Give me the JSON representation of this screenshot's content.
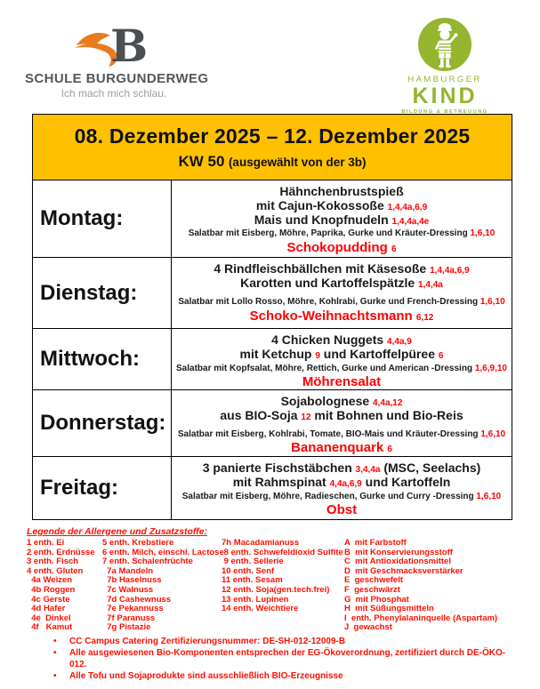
{
  "branding": {
    "school": {
      "letter": "B",
      "name": "SCHULE BURGUNDERWEG",
      "tagline": "Ich mach mich schlau."
    },
    "provider": {
      "line1": "HAMBURGER",
      "line2": "KIND",
      "line3": "BILDUNG & BETREUUNG"
    }
  },
  "title": {
    "date_range": "08. Dezember 2025 – 12. Dezember 2025",
    "week": "KW 50",
    "week_note": "(ausgewählt von der 3b)"
  },
  "colors": {
    "banner_yellow": "#FFC000",
    "allergen_red": "#FF0000",
    "provider_green": "#95B52F",
    "logo_orange": "#E87A20",
    "logo_gray": "#54575A"
  },
  "menu": {
    "days": [
      {
        "label": "Montag:",
        "lines": [
          {
            "type": "main",
            "segments": [
              {
                "t": "Hähnchenbrustspieß"
              }
            ]
          },
          {
            "type": "main",
            "segments": [
              {
                "t": "mit Cajun-Kokossoße "
              },
              {
                "t": "1,4,4a,6,9",
                "num": true
              }
            ]
          },
          {
            "type": "main",
            "segments": [
              {
                "t": "Mais und Knopfnudeln "
              },
              {
                "t": "1,4,4a,4e",
                "num": true
              }
            ]
          },
          {
            "type": "salad",
            "segments": [
              {
                "t": "Salatbar mit Eisberg, Möhre, Paprika, Gurke und Kräuter-Dressing "
              },
              {
                "t": "1,6,10",
                "num": true
              }
            ]
          }
        ],
        "dessert": {
          "type": "dessert",
          "segments": [
            {
              "t": "Schokopudding "
            },
            {
              "t": "6",
              "num": true
            }
          ]
        }
      },
      {
        "label": "Dienstag:",
        "lines": [
          {
            "type": "main",
            "segments": [
              {
                "t": "4 Rindfleischbällchen mit Käsesoße "
              },
              {
                "t": "1,4,4a,6,9",
                "num": true
              }
            ]
          },
          {
            "type": "main",
            "segments": [
              {
                "t": "Karotten und Kartoffelspätzle "
              },
              {
                "t": "1,4,4a",
                "num": true
              }
            ]
          },
          {
            "type": "salad",
            "gap": true,
            "segments": [
              {
                "t": "Salatbar mit Lollo Rosso, Möhre, Kohlrabi, Gurke und French-Dressing "
              },
              {
                "t": "1,6,10",
                "num": true
              }
            ]
          }
        ],
        "dessert": {
          "type": "dessert",
          "segments": [
            {
              "t": "Schoko-Weihnachtsmann "
            },
            {
              "t": "6,12",
              "num": true
            }
          ]
        }
      },
      {
        "label": "Mittwoch:",
        "lines": [
          {
            "type": "main",
            "segments": [
              {
                "t": "4 Chicken Nuggets "
              },
              {
                "t": "4,4a,9",
                "num": true
              }
            ]
          },
          {
            "type": "main",
            "segments": [
              {
                "t": "mit Ketchup "
              },
              {
                "t": "9",
                "num": true
              },
              {
                "t": " und Kartoffelpüree "
              },
              {
                "t": "6",
                "num": true
              }
            ]
          },
          {
            "type": "salad",
            "segments": [
              {
                "t": "Salatbar mit Kopfsalat, Möhre, Rettich, Gurke und American -Dressing "
              },
              {
                "t": "1,6,9,10",
                "num": true
              }
            ]
          }
        ],
        "dessert": {
          "type": "dessert",
          "segments": [
            {
              "t": "Möhrensalat"
            }
          ]
        }
      },
      {
        "label": "Donnerstag:",
        "lines": [
          {
            "type": "main",
            "segments": [
              {
                "t": "Sojabolognese "
              },
              {
                "t": "4,4a,12",
                "num": true
              }
            ]
          },
          {
            "type": "main",
            "segments": [
              {
                "t": "aus BIO-Soja "
              },
              {
                "t": "12",
                "num": true
              },
              {
                "t": " mit Bohnen und Bio-Reis"
              }
            ]
          },
          {
            "type": "salad",
            "gap": true,
            "segments": [
              {
                "t": "Salatbar mit Eisberg, Kohlrabi, Tomate, BIO-Mais und Kräuter-Dressing "
              },
              {
                "t": "1,6,10",
                "num": true
              }
            ]
          }
        ],
        "dessert": {
          "type": "dessert",
          "segments": [
            {
              "t": "Bananenquark "
            },
            {
              "t": "6",
              "num": true
            }
          ]
        }
      },
      {
        "label": "Freitag:",
        "lines": [
          {
            "type": "main",
            "segments": [
              {
                "t": "3 panierte Fischstäbchen "
              },
              {
                "t": "3,4,4a",
                "num": true
              },
              {
                "t": " (MSC, Seelachs)"
              }
            ]
          },
          {
            "type": "main",
            "segments": [
              {
                "t": "mit Rahmspinat "
              },
              {
                "t": "4,4a,6,9",
                "num": true
              },
              {
                "t": " und Kartoffeln"
              }
            ]
          },
          {
            "type": "salad",
            "segments": [
              {
                "t": "Salatbar mit Eisberg, Möhre, Radieschen, Gurke und Curry -Dressing "
              },
              {
                "t": "1,6,10",
                "num": true
              }
            ]
          }
        ],
        "dessert": {
          "type": "dessert",
          "segments": [
            {
              "t": "Obst"
            }
          ]
        }
      }
    ]
  },
  "legend": {
    "title": "Legende der Allergene und Zusatzstoffe:",
    "columns": [
      [
        "1 enth. Ei",
        "2 enth. Erdnüsse",
        "3 enth. Fisch",
        "4 enth. Gluten",
        "  4a Weizen",
        "  4b Roggen",
        "  4c Gerste",
        "  4d Hafer",
        "  4e  Dinkel",
        "  4f   Kamut"
      ],
      [
        "5 enth. Krebstiere",
        "6 enth. Milch, einschl. Lactose",
        "7 enth. Schalenfrüchte",
        "  7a Mandeln",
        "  7b Haselnuss",
        "  7c Walnuss",
        "  7d Cashewnuss",
        "  7e Pekannuss",
        "  7f Paranuss",
        "  7g Pistazie"
      ],
      [
        "7h Macadamianuss",
        " 8 enth. Schwefeldioxid Sulfite",
        " 9 enth. Sellerie",
        "10 enth. Senf",
        "11 enth. Sesam",
        "12 enth. Soja(gen.tech.frei)",
        "13 enth. Lupinen",
        "14 enth. Weichtiere"
      ],
      [
        "A  mit Farbstoff",
        "B  mit Konservierungsstoff",
        "C  mit Antioxidationsmittel",
        "D  mit Geschmacksverstärker",
        "E  geschwefelt",
        "F  geschwärzt",
        "G  mit Phosphat",
        "H  mit Süßungsmitteln",
        "I  enth. Phenylalaninquelle (Aspartam)",
        "J  gewachst"
      ]
    ]
  },
  "footnotes": [
    "CC Campus Catering Zertifizierungsnummer: DE-SH-012-12009-B",
    "Alle ausgewiesenen Bio-Komponenten entsprechen der EG-Ökoverordnung, zertifiziert durch DE-ÖKO-012.",
    "Alle Tofu und Sojaprodukte sind ausschließlich BIO-Erzeugnisse"
  ]
}
